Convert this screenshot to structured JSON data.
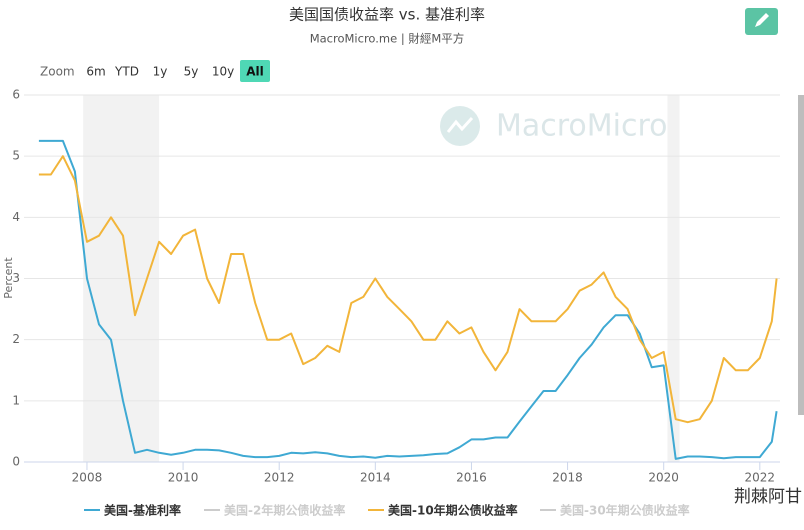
{
  "chart_data": {
    "type": "line",
    "title": "美国国债收益率 vs. 基准利率",
    "subtitle": "MacroMicro.me | 財經M平方",
    "y_label": "Percent",
    "watermark": "MacroMicro",
    "credit": "荆棘阿甘",
    "zoom": {
      "label": "Zoom",
      "buttons": [
        "6m",
        "YTD",
        "1y",
        "5y",
        "10y",
        "All"
      ],
      "active": 5
    },
    "xlim": [
      2006.69,
      2022.42
    ],
    "xticks": [
      2008,
      2010,
      2012,
      2014,
      2016,
      2018,
      2020,
      2022
    ],
    "ylim": [
      0,
      6
    ],
    "yticks": [
      0,
      1,
      2,
      3,
      4,
      5,
      6
    ],
    "grid": true,
    "bands": [
      [
        2007.92,
        2009.5
      ],
      [
        2020.08,
        2020.33
      ]
    ],
    "band_color": "#f2f2f2",
    "x": [
      2007,
      2007.25,
      2007.5,
      2007.75,
      2008,
      2008.25,
      2008.5,
      2008.75,
      2009,
      2009.25,
      2009.5,
      2009.75,
      2010,
      2010.25,
      2010.5,
      2010.75,
      2011,
      2011.25,
      2011.5,
      2011.75,
      2012,
      2012.25,
      2012.5,
      2012.75,
      2013,
      2013.25,
      2013.5,
      2013.75,
      2014,
      2014.25,
      2014.5,
      2014.75,
      2015,
      2015.25,
      2015.5,
      2015.75,
      2016,
      2016.25,
      2016.5,
      2016.75,
      2017,
      2017.25,
      2017.5,
      2017.75,
      2018,
      2018.25,
      2018.5,
      2018.75,
      2019,
      2019.25,
      2019.5,
      2019.75,
      2020,
      2020.25,
      2020.5,
      2020.75,
      2021,
      2021.25,
      2021.5,
      2021.75,
      2022,
      2022.25,
      2022.35
    ],
    "series": [
      {
        "name": "美国-基准利率",
        "color": "#3fa9d3",
        "visible": true,
        "values": [
          5.25,
          5.25,
          5.25,
          4.75,
          3.0,
          2.25,
          2.0,
          1.0,
          0.15,
          0.2,
          0.15,
          0.12,
          0.15,
          0.2,
          0.2,
          0.19,
          0.15,
          0.1,
          0.08,
          0.08,
          0.1,
          0.15,
          0.14,
          0.16,
          0.14,
          0.1,
          0.08,
          0.09,
          0.07,
          0.1,
          0.09,
          0.1,
          0.11,
          0.13,
          0.14,
          0.24,
          0.37,
          0.37,
          0.4,
          0.4,
          0.66,
          0.91,
          1.16,
          1.16,
          1.42,
          1.7,
          1.92,
          2.2,
          2.4,
          2.4,
          2.1,
          1.55,
          1.58,
          0.05,
          0.09,
          0.09,
          0.08,
          0.06,
          0.08,
          0.08,
          0.08,
          0.33,
          0.83
        ]
      },
      {
        "name": "美国-2年期公债收益率",
        "color": "#cccccc",
        "visible": false,
        "values": [
          null,
          null,
          null,
          null,
          null,
          null,
          null,
          null,
          null,
          null,
          null,
          null,
          null,
          null,
          null,
          null,
          null,
          null,
          null,
          null,
          null,
          null,
          null,
          null,
          null,
          null,
          null,
          null,
          null,
          null,
          null,
          null,
          null,
          null,
          null,
          null,
          null,
          null,
          null,
          null,
          null,
          null,
          null,
          null,
          null,
          null,
          null,
          null,
          null,
          null,
          null,
          null,
          null,
          null,
          null,
          null,
          null,
          null,
          null,
          null,
          null,
          null,
          null
        ]
      },
      {
        "name": "美国-10年期公债收益率",
        "color": "#f2b53a",
        "visible": true,
        "values": [
          4.7,
          4.7,
          5.0,
          4.6,
          3.6,
          3.7,
          4.0,
          3.7,
          2.4,
          3.0,
          3.6,
          3.4,
          3.7,
          3.8,
          3.0,
          2.6,
          3.4,
          3.4,
          2.6,
          2.0,
          2.0,
          2.1,
          1.6,
          1.7,
          1.9,
          1.8,
          2.6,
          2.7,
          3.0,
          2.7,
          2.5,
          2.3,
          2.0,
          2.0,
          2.3,
          2.1,
          2.2,
          1.8,
          1.5,
          1.8,
          2.5,
          2.3,
          2.3,
          2.3,
          2.5,
          2.8,
          2.9,
          3.1,
          2.7,
          2.5,
          2.0,
          1.7,
          1.8,
          0.7,
          0.65,
          0.7,
          1.0,
          1.7,
          1.5,
          1.5,
          1.7,
          2.3,
          3.0
        ]
      },
      {
        "name": "美国-30年期公债收益率",
        "color": "#cccccc",
        "visible": false,
        "values": [
          null,
          null,
          null,
          null,
          null,
          null,
          null,
          null,
          null,
          null,
          null,
          null,
          null,
          null,
          null,
          null,
          null,
          null,
          null,
          null,
          null,
          null,
          null,
          null,
          null,
          null,
          null,
          null,
          null,
          null,
          null,
          null,
          null,
          null,
          null,
          null,
          null,
          null,
          null,
          null,
          null,
          null,
          null,
          null,
          null,
          null,
          null,
          null,
          null,
          null,
          null,
          null,
          null,
          null,
          null,
          null,
          null,
          null,
          null,
          null,
          null,
          null,
          null
        ]
      }
    ]
  }
}
